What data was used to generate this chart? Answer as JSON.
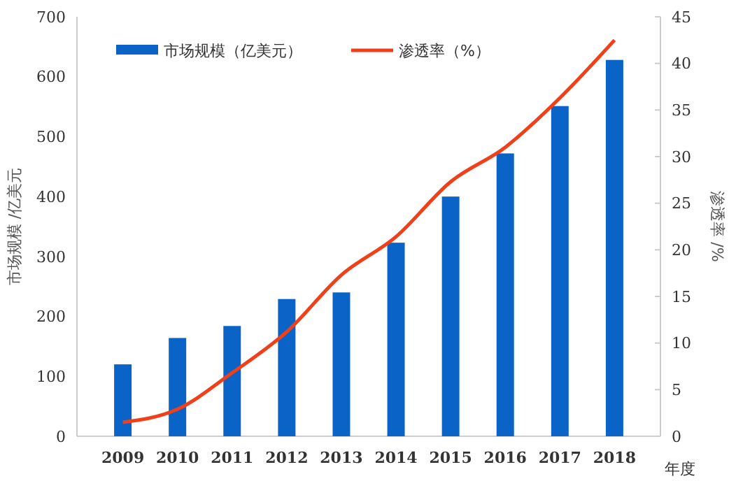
{
  "chart_data": {
    "type": "bar",
    "xlabel": "年度",
    "ylabel": "市场规模 /亿美元",
    "y2label": "渗透率 /%",
    "categories": [
      "2009",
      "2010",
      "2011",
      "2012",
      "2013",
      "2014",
      "2015",
      "2016",
      "2017",
      "2018"
    ],
    "series": [
      {
        "name": "市场规模（亿美元）",
        "color": "#0a64c8",
        "values": [
          120,
          164,
          184,
          229,
          240,
          323,
          400,
          472,
          551,
          628
        ]
      },
      {
        "name": "渗透率（%）",
        "type": "line",
        "axis": "y2",
        "color": "#f0401a",
        "values": [
          1.5,
          2.9,
          6.8,
          11.2,
          17.3,
          21.4,
          27.3,
          31,
          36.3,
          42.5
        ]
      }
    ],
    "ylim": [
      0,
      700
    ],
    "yticks": [
      0,
      100,
      200,
      300,
      400,
      500,
      600,
      700
    ],
    "y2lim": [
      0,
      45
    ],
    "y2ticks": [
      0,
      5,
      10,
      15,
      20,
      25,
      30,
      35,
      40,
      45
    ],
    "grid": false,
    "legend": "top left",
    "marker": "none"
  }
}
